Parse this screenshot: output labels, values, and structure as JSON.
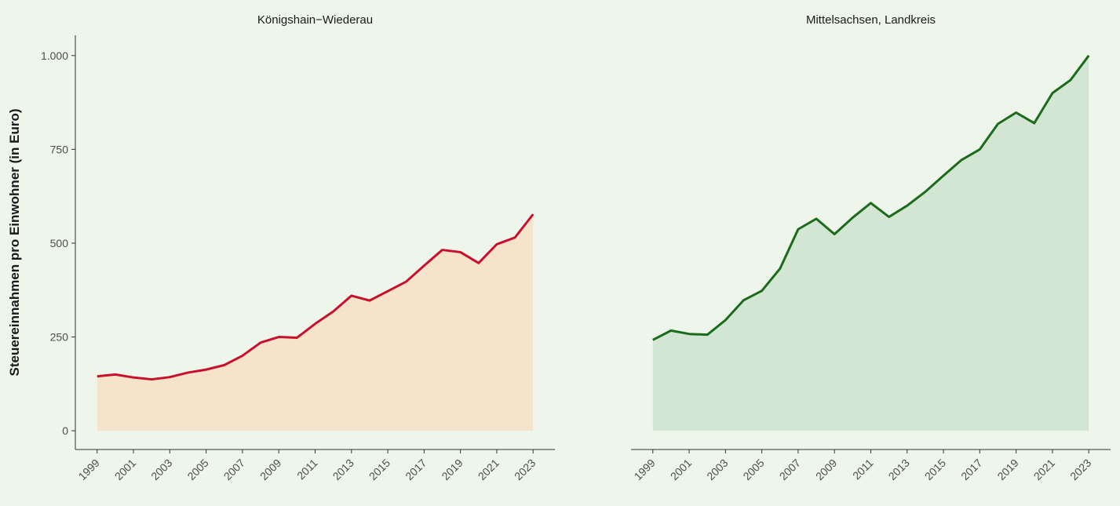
{
  "chart_data": [
    {
      "type": "area",
      "title": "Königshain−Wiederau",
      "ylabel": "Steuereinnahmen pro Einwohner (in Euro)",
      "x": [
        1999,
        2000,
        2001,
        2002,
        2003,
        2004,
        2005,
        2006,
        2007,
        2008,
        2009,
        2010,
        2011,
        2012,
        2013,
        2014,
        2015,
        2016,
        2017,
        2018,
        2019,
        2020,
        2021,
        2022,
        2023
      ],
      "series": [
        {
          "name": "Königshain−Wiederau",
          "color": "#c8102e",
          "fill": "#f5e4cb",
          "values": [
            145,
            150,
            142,
            137,
            143,
            155,
            163,
            175,
            200,
            235,
            250,
            248,
            285,
            318,
            360,
            347,
            372,
            397,
            440,
            482,
            476,
            447,
            497,
            515,
            577
          ]
        }
      ],
      "xlim": [
        1997.8,
        2024.2
      ],
      "xticks": [
        1999,
        2001,
        2003,
        2005,
        2007,
        2009,
        2011,
        2013,
        2015,
        2017,
        2019,
        2021,
        2023
      ],
      "ylim": [
        -50,
        1054
      ],
      "yticks": [
        0,
        250,
        500,
        750,
        {
          "value": 1000,
          "label": "1.000"
        }
      ]
    },
    {
      "type": "area",
      "title": "Mittelsachsen, Landkreis",
      "x": [
        1999,
        2000,
        2001,
        2002,
        2003,
        2004,
        2005,
        2006,
        2007,
        2008,
        2009,
        2010,
        2011,
        2012,
        2013,
        2014,
        2015,
        2016,
        2017,
        2018,
        2019,
        2020,
        2021,
        2022,
        2023
      ],
      "series": [
        {
          "name": "Mittelsachsen, Landkreis",
          "color": "#1b6b1b",
          "fill": "#d3e6d3",
          "values": [
            242,
            267,
            258,
            256,
            295,
            348,
            373,
            432,
            537,
            565,
            524,
            568,
            607,
            570,
            600,
            637,
            680,
            722,
            750,
            818,
            848,
            820,
            900,
            935,
            1000
          ]
        }
      ],
      "xlim": [
        1997.8,
        2024.2
      ],
      "xticks": [
        1999,
        2001,
        2003,
        2005,
        2007,
        2009,
        2011,
        2013,
        2015,
        2017,
        2019,
        2021,
        2023
      ],
      "ylim": [
        -50,
        1054
      ],
      "yticks": [
        0,
        250,
        500,
        750,
        {
          "value": 1000,
          "label": "1.000"
        }
      ]
    }
  ]
}
